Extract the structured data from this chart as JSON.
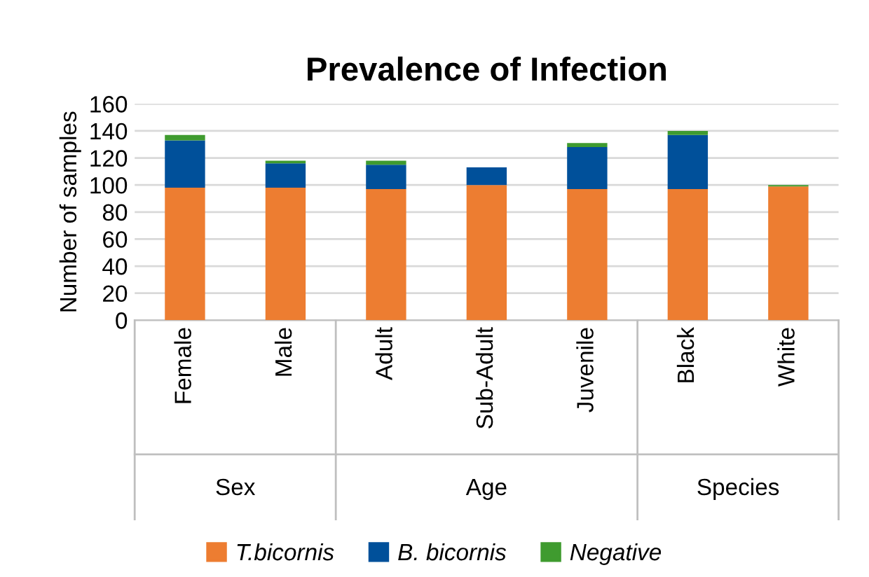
{
  "chart_data": {
    "type": "bar",
    "title": "Prevalence of Infection",
    "ylabel": "Number of samples",
    "categories": [
      "Female",
      "Male",
      "Adult",
      "Sub-Adult",
      "Juvenile",
      "Black",
      "White"
    ],
    "series": [
      {
        "name": "T.bicornis",
        "color": "#ed7d31",
        "values": [
          98,
          98,
          97,
          100,
          97,
          97,
          99
        ]
      },
      {
        "name": "B. bicornis",
        "color": "#00509a",
        "values": [
          35,
          18,
          18,
          13,
          31,
          40,
          0
        ]
      },
      {
        "name": "Negative",
        "color": "#3f9b2f",
        "values": [
          4,
          2,
          3,
          0,
          3,
          3,
          1
        ]
      }
    ],
    "stacked": true,
    "ylim": [
      0,
      160
    ],
    "yticks": [
      0,
      20,
      40,
      60,
      80,
      100,
      120,
      140,
      160
    ],
    "grid": "y",
    "legend": "bottom",
    "annotations": [
      "Sex",
      "Age",
      "Species"
    ]
  }
}
